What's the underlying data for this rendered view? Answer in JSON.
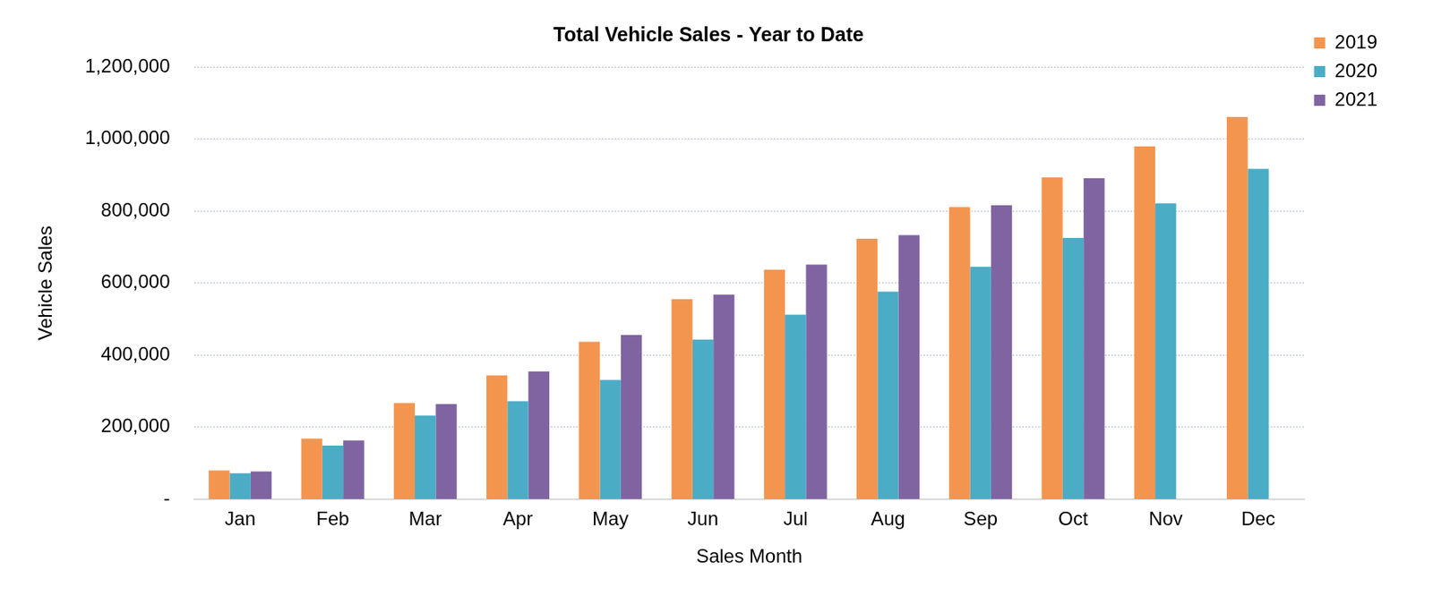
{
  "chart_data": {
    "type": "bar",
    "title": "Total Vehicle Sales - Year to Date",
    "x_label": "Sales Month",
    "y_label": "Vehicle Sales",
    "categories": [
      "Jan",
      "Feb",
      "Mar",
      "Apr",
      "May",
      "Jun",
      "Jul",
      "Aug",
      "Sep",
      "Oct",
      "Nov",
      "Dec"
    ],
    "series": [
      {
        "name": "2019",
        "color": "#f4954f",
        "values": [
          80000,
          168000,
          267000,
          344000,
          437000,
          555000,
          637000,
          723000,
          811000,
          893000,
          979000,
          1061000
        ]
      },
      {
        "name": "2020",
        "color": "#4bacc6",
        "values": [
          72000,
          149000,
          232000,
          272000,
          331000,
          443000,
          512000,
          576000,
          645000,
          725000,
          821000,
          917000
        ]
      },
      {
        "name": "2021",
        "color": "#8064a2",
        "values": [
          77000,
          163000,
          264000,
          355000,
          456000,
          568000,
          651000,
          733000,
          816000,
          891000,
          null,
          null
        ]
      }
    ],
    "ylim": [
      0,
      1200000
    ],
    "yticks": [
      {
        "value": 0,
        "label": "-"
      },
      {
        "value": 200000,
        "label": "200,000"
      },
      {
        "value": 400000,
        "label": "400,000"
      },
      {
        "value": 600000,
        "label": "600,000"
      },
      {
        "value": 800000,
        "label": "800,000"
      },
      {
        "value": 1000000,
        "label": "1,000,000"
      },
      {
        "value": 1200000,
        "label": "1,200,000"
      }
    ],
    "grid": true,
    "legend": "upper right"
  }
}
